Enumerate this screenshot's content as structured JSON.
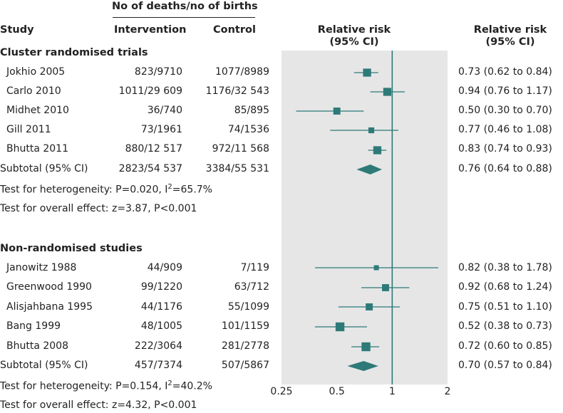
{
  "header": {
    "group_label": "No of deaths/no of births",
    "study": "Study",
    "intervention": "Intervention",
    "control": "Control",
    "rr_plot_line1": "Relative risk",
    "rr_plot_line2": "(95% CI)",
    "rr_text_line1": "Relative risk",
    "rr_text_line2": "(95% CI)"
  },
  "sections": [
    {
      "title": "Cluster randomised trials",
      "rows": [
        {
          "study": "Jokhio 2005",
          "intervention": "823/9710",
          "control": "1077/8989",
          "rr_text": "0.73 (0.62 to 0.84)"
        },
        {
          "study": "Carlo 2010",
          "intervention": "1011/29 609",
          "control": "1176/32 543",
          "rr_text": "0.94 (0.76 to 1.17)"
        },
        {
          "study": "Midhet 2010",
          "intervention": "36/740",
          "control": "85/895",
          "rr_text": "0.50 (0.30 to 0.70)"
        },
        {
          "study": "Gill 2011",
          "intervention": "73/1961",
          "control": "74/1536",
          "rr_text": "0.77 (0.46 to 1.08)"
        },
        {
          "study": "Bhutta 2011",
          "intervention": "880/12 517",
          "control": "972/11 568",
          "rr_text": "0.83 (0.74 to 0.93)"
        }
      ],
      "subtotal": {
        "label": "Subtotal (95% CI)",
        "intervention": "2823/54 537",
        "control": "3384/55 531",
        "rr_text": "0.76 (0.64 to 0.88)"
      },
      "heterogeneity": {
        "prefix": "Test for heterogeneity: P=0.020, I",
        "sup": "2",
        "suffix": "=65.7%"
      },
      "overall": "Test for overall effect: z=3.87, P<0.001"
    },
    {
      "title": "Non-randomised studies",
      "rows": [
        {
          "study": "Janowitz 1988",
          "intervention": "44/909",
          "control": "7/119",
          "rr_text": "0.82 (0.38 to 1.78)"
        },
        {
          "study": "Greenwood 1990",
          "intervention": "99/1220",
          "control": "63/712",
          "rr_text": "0.92 (0.68 to 1.24)"
        },
        {
          "study": "Alisjahbana 1995",
          "intervention": "44/1176",
          "control": "55/1099",
          "rr_text": "0.75 (0.51 to 1.10)"
        },
        {
          "study": "Bang 1999",
          "intervention": "48/1005",
          "control": "101/1159",
          "rr_text": "0.52 (0.38 to 0.73)"
        },
        {
          "study": "Bhutta 2008",
          "intervention": "222/3064",
          "control": "281/2778",
          "rr_text": "0.72 (0.60 to 0.85)"
        }
      ],
      "subtotal": {
        "label": "Subtotal (95% CI)",
        "intervention": "457/7374",
        "control": "507/5867",
        "rr_text": "0.70 (0.57 to 0.84)"
      },
      "heterogeneity": {
        "prefix": "Test for heterogeneity: P=0.154, I",
        "sup": "2",
        "suffix": "=40.2%"
      },
      "overall": "Test for overall effect: z=4.32, P<0.001"
    }
  ],
  "colors": {
    "marker": "#2e7a78",
    "panel": "#e6e6e6",
    "text": "#222222"
  },
  "chart_data": {
    "type": "forest",
    "x_scale": "log",
    "xlim": [
      0.25,
      2
    ],
    "ticks": [
      {
        "value": 0.25,
        "label": "0.25"
      },
      {
        "value": 0.5,
        "label": "0.5"
      },
      {
        "value": 1,
        "label": "1"
      },
      {
        "value": 2,
        "label": "2"
      }
    ],
    "reference_line": 1,
    "groups": [
      {
        "name": "Cluster randomised trials",
        "studies": [
          {
            "name": "Jokhio 2005",
            "rr": 0.73,
            "lower": 0.62,
            "upper": 0.84,
            "weight": 3
          },
          {
            "name": "Carlo 2010",
            "rr": 0.94,
            "lower": 0.76,
            "upper": 1.17,
            "weight": 3
          },
          {
            "name": "Midhet 2010",
            "rr": 0.5,
            "lower": 0.3,
            "upper": 0.7,
            "weight": 2
          },
          {
            "name": "Gill 2011",
            "rr": 0.77,
            "lower": 0.46,
            "upper": 1.08,
            "weight": 1
          },
          {
            "name": "Bhutta 2011",
            "rr": 0.83,
            "lower": 0.74,
            "upper": 0.93,
            "weight": 3
          }
        ],
        "pooled": {
          "rr": 0.76,
          "lower": 0.64,
          "upper": 0.88
        }
      },
      {
        "name": "Non-randomised studies",
        "studies": [
          {
            "name": "Janowitz 1988",
            "rr": 0.82,
            "lower": 0.38,
            "upper": 1.78,
            "weight": 0.5
          },
          {
            "name": "Greenwood 1990",
            "rr": 0.92,
            "lower": 0.68,
            "upper": 1.24,
            "weight": 2
          },
          {
            "name": "Alisjahbana 1995",
            "rr": 0.75,
            "lower": 0.51,
            "upper": 1.1,
            "weight": 2
          },
          {
            "name": "Bang 1999",
            "rr": 0.52,
            "lower": 0.38,
            "upper": 0.73,
            "weight": 4
          },
          {
            "name": "Bhutta 2008",
            "rr": 0.72,
            "lower": 0.6,
            "upper": 0.85,
            "weight": 4
          }
        ],
        "pooled": {
          "rr": 0.7,
          "lower": 0.57,
          "upper": 0.84
        }
      }
    ]
  }
}
